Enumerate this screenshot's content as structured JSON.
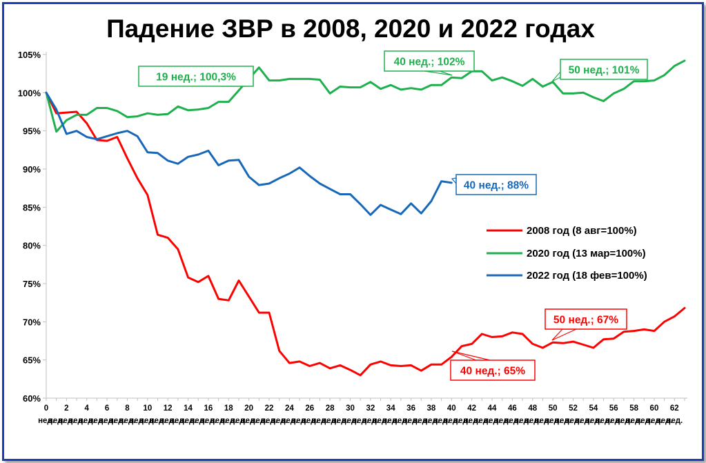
{
  "chart_data": {
    "type": "line",
    "title": "Падение ЗВР в 2008, 2020 и 2022 годах",
    "xlabel": "",
    "ylabel": "",
    "ylim": [
      60,
      105
    ],
    "xlim": [
      0,
      63
    ],
    "y_ticks": [
      {
        "value": 105,
        "label": "105%"
      },
      {
        "value": 100,
        "label": "100%"
      },
      {
        "value": 95,
        "label": "95%"
      },
      {
        "value": 90,
        "label": "90%"
      },
      {
        "value": 85,
        "label": "85%"
      },
      {
        "value": 80,
        "label": "80%"
      },
      {
        "value": 75,
        "label": "75%"
      },
      {
        "value": 70,
        "label": "70%"
      },
      {
        "value": 65,
        "label": "65%"
      },
      {
        "value": 60,
        "label": "60%"
      }
    ],
    "x_ticks": [
      {
        "value": 0,
        "label": "0"
      },
      {
        "value": 2,
        "label": "2"
      },
      {
        "value": 4,
        "label": "4"
      },
      {
        "value": 6,
        "label": "6"
      },
      {
        "value": 8,
        "label": "8"
      },
      {
        "value": 10,
        "label": "10"
      },
      {
        "value": 12,
        "label": "12"
      },
      {
        "value": 14,
        "label": "14"
      },
      {
        "value": 16,
        "label": "16"
      },
      {
        "value": 18,
        "label": "18"
      },
      {
        "value": 20,
        "label": "20"
      },
      {
        "value": 22,
        "label": "22"
      },
      {
        "value": 24,
        "label": "24"
      },
      {
        "value": 26,
        "label": "26"
      },
      {
        "value": 28,
        "label": "28"
      },
      {
        "value": 30,
        "label": "30"
      },
      {
        "value": 32,
        "label": "32"
      },
      {
        "value": 34,
        "label": "34"
      },
      {
        "value": 36,
        "label": "36"
      },
      {
        "value": 38,
        "label": "38"
      },
      {
        "value": 40,
        "label": "40"
      },
      {
        "value": 42,
        "label": "42"
      },
      {
        "value": 44,
        "label": "44"
      },
      {
        "value": 46,
        "label": "46"
      },
      {
        "value": 48,
        "label": "48"
      },
      {
        "value": 50,
        "label": "50"
      },
      {
        "value": 52,
        "label": "52"
      },
      {
        "value": 54,
        "label": "54"
      },
      {
        "value": 56,
        "label": "56"
      },
      {
        "value": 58,
        "label": "58"
      },
      {
        "value": 60,
        "label": "60"
      },
      {
        "value": 62,
        "label": "62"
      }
    ],
    "x_unit_label": "нед.",
    "grid": false,
    "legend_position": "right",
    "series": [
      {
        "name": "2008 год (8 авг=100%)",
        "color": "#ff0000",
        "x": [
          0,
          1,
          2,
          3,
          4,
          5,
          6,
          7,
          8,
          9,
          10,
          11,
          12,
          13,
          14,
          15,
          16,
          17,
          18,
          19,
          20,
          21,
          22,
          23,
          24,
          25,
          26,
          27,
          28,
          29,
          30,
          31,
          32,
          33,
          34,
          35,
          36,
          37,
          38,
          39,
          40,
          41,
          42,
          43,
          44,
          45,
          46,
          47,
          48,
          49,
          50,
          51,
          52,
          53,
          54,
          55,
          56,
          57,
          58,
          59,
          60,
          61,
          62,
          63
        ],
        "values": [
          100,
          97.3,
          97.4,
          97.5,
          96,
          93.8,
          93.7,
          94.2,
          91.4,
          88.8,
          86.6,
          81.4,
          81,
          79.5,
          75.8,
          75.2,
          76,
          73,
          72.8,
          75.4,
          73.3,
          71.2,
          71.2,
          66.2,
          64.6,
          64.8,
          64.2,
          64.6,
          63.9,
          64.3,
          63.7,
          63,
          64.4,
          64.8,
          64.3,
          64.2,
          64.3,
          63.6,
          64.4,
          64.4,
          65.4,
          66.8,
          67.1,
          68.4,
          68,
          68.1,
          68.6,
          68.4,
          67.1,
          66.6,
          67.3,
          67.2,
          67.4,
          67,
          66.6,
          67.7,
          67.8,
          68.7,
          68.8,
          69,
          68.8,
          70,
          70.7,
          71.8
        ]
      },
      {
        "name": "2020 год (13 мар=100%)",
        "color": "#1db04d",
        "x": [
          0,
          1,
          2,
          3,
          4,
          5,
          6,
          7,
          8,
          9,
          10,
          11,
          12,
          13,
          14,
          15,
          16,
          17,
          18,
          19,
          20,
          21,
          22,
          23,
          24,
          25,
          26,
          27,
          28,
          29,
          30,
          31,
          32,
          33,
          34,
          35,
          36,
          37,
          38,
          39,
          40,
          41,
          42,
          43,
          44,
          45,
          46,
          47,
          48,
          49,
          50,
          51,
          52,
          53,
          54,
          55,
          56,
          57,
          58,
          59,
          60,
          61,
          62,
          63
        ],
        "values": [
          100,
          94.9,
          96.4,
          97.1,
          97.1,
          98,
          98,
          97.6,
          96.8,
          96.9,
          97.3,
          97.1,
          97.2,
          98.2,
          97.7,
          97.8,
          98,
          98.8,
          98.8,
          100.3,
          101.8,
          103.3,
          101.6,
          101.6,
          101.8,
          101.8,
          101.8,
          101.7,
          99.9,
          100.8,
          100.7,
          100.7,
          101.4,
          100.5,
          101,
          100.4,
          100.6,
          100.4,
          101,
          101,
          102,
          101.9,
          102.8,
          102.8,
          101.6,
          102,
          101.5,
          100.9,
          101.8,
          100.8,
          101.4,
          99.9,
          99.9,
          100,
          99.4,
          98.9,
          99.9,
          100.5,
          101.5,
          101.5,
          101.6,
          102.3,
          103.5,
          104.2
        ]
      },
      {
        "name": "2022 год (18 фев=100%)",
        "color": "#1768b8",
        "x": [
          0,
          1,
          2,
          3,
          4,
          5,
          6,
          7,
          8,
          9,
          10,
          11,
          12,
          13,
          14,
          15,
          16,
          17,
          18,
          19,
          20,
          21,
          22,
          23,
          24,
          25,
          26,
          27,
          28,
          29,
          30,
          31,
          32,
          33,
          34,
          35,
          36,
          37,
          38,
          39,
          40
        ],
        "values": [
          100,
          97.8,
          94.6,
          95,
          94.2,
          93.9,
          94.3,
          94.7,
          95,
          94.3,
          92.2,
          92.1,
          91.1,
          90.7,
          91.6,
          91.9,
          92.4,
          90.5,
          91.1,
          91.2,
          89,
          87.9,
          88.1,
          88.8,
          89.4,
          90.2,
          89.1,
          88.1,
          87.4,
          86.7,
          86.7,
          85.4,
          84,
          85.3,
          84.7,
          84.1,
          85.5,
          84.2,
          85.8,
          88.4,
          88.2
        ]
      }
    ],
    "annotations": [
      {
        "text": "19 нед.; 100,3%",
        "series": 1,
        "x": 19,
        "y": 100.3
      },
      {
        "text": "40 нед.; 102%",
        "series": 1,
        "x": 40,
        "y": 102
      },
      {
        "text": "50 нед.; 101%",
        "series": 1,
        "x": 50,
        "y": 101
      },
      {
        "text": "40 нед.; 88%",
        "series": 2,
        "x": 40,
        "y": 88.2
      },
      {
        "text": "50 нед.; 67%",
        "series": 0,
        "x": 50,
        "y": 67.3
      },
      {
        "text": "40 нед.; 65%",
        "series": 0,
        "x": 40,
        "y": 65.4
      }
    ]
  }
}
